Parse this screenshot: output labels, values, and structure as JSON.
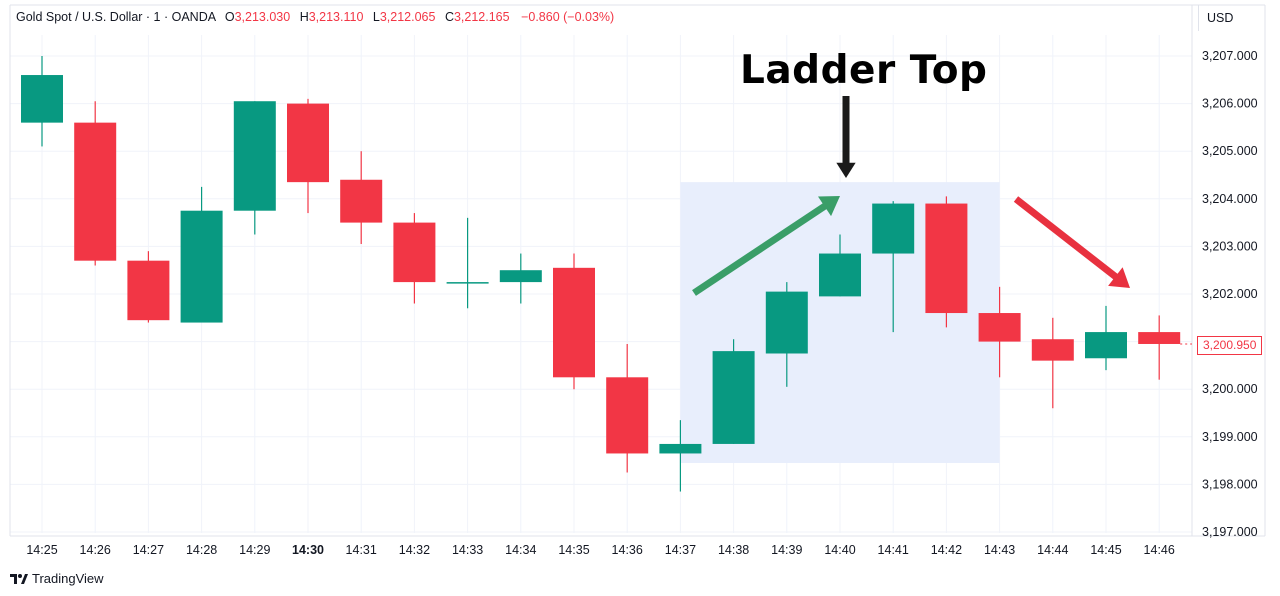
{
  "legend": {
    "symbol": "Gold Spot / U.S. Dollar · 1 · OANDA",
    "open_label": "O",
    "open": "3,213.030",
    "high_label": "H",
    "high": "3,213.110",
    "low_label": "L",
    "low": "3,212.065",
    "close_label": "C",
    "close": "3,212.165",
    "change": "−0.860 (−0.03%)"
  },
  "currency": "USD",
  "annotation": {
    "title": "Ladder Top"
  },
  "last_price_label": "3,200.950",
  "brand": "TradingView",
  "colors": {
    "up": "#089981",
    "down": "#f23645",
    "highlight": "#e8eefc",
    "green_arrow": "#3a9e68",
    "red_arrow": "#e8313f"
  },
  "chart_data": {
    "type": "candlestick",
    "xlabel": "",
    "ylabel": "",
    "ylim": [
      3197.0,
      3207.5
    ],
    "y_ticks": [
      "3,197.000",
      "3,198.000",
      "3,199.000",
      "3,200.000",
      "3,201.000",
      "3,202.000",
      "3,203.000",
      "3,204.000",
      "3,205.000",
      "3,206.000",
      "3,207.000"
    ],
    "y_tick_values": [
      3197,
      3198,
      3199,
      3200,
      3201,
      3202,
      3203,
      3204,
      3205,
      3206,
      3207
    ],
    "grid": true,
    "highlight_range": {
      "from": "14:37",
      "to": "14:43",
      "price_low": 3198.45,
      "price_high": 3204.35
    },
    "candles": [
      {
        "time": "14:25",
        "open": 3205.6,
        "high": 3207.0,
        "low": 3205.1,
        "close": 3206.6
      },
      {
        "time": "14:26",
        "open": 3205.6,
        "high": 3206.05,
        "low": 3202.6,
        "close": 3202.7
      },
      {
        "time": "14:27",
        "open": 3202.7,
        "high": 3202.9,
        "low": 3201.4,
        "close": 3201.45
      },
      {
        "time": "14:28",
        "open": 3201.4,
        "high": 3204.25,
        "low": 3201.4,
        "close": 3203.75
      },
      {
        "time": "14:29",
        "open": 3203.75,
        "high": 3206.05,
        "low": 3203.25,
        "close": 3206.05
      },
      {
        "time": "14:30",
        "open": 3206.0,
        "high": 3206.1,
        "low": 3203.7,
        "close": 3204.35
      },
      {
        "time": "14:31",
        "open": 3204.4,
        "high": 3205.0,
        "low": 3203.05,
        "close": 3203.5
      },
      {
        "time": "14:32",
        "open": 3203.5,
        "high": 3203.7,
        "low": 3201.8,
        "close": 3202.25
      },
      {
        "time": "14:33",
        "open": 3202.25,
        "high": 3203.6,
        "low": 3201.7,
        "close": 3202.25
      },
      {
        "time": "14:34",
        "open": 3202.25,
        "high": 3202.85,
        "low": 3201.8,
        "close": 3202.5
      },
      {
        "time": "14:35",
        "open": 3202.55,
        "high": 3202.85,
        "low": 3200.0,
        "close": 3200.25
      },
      {
        "time": "14:36",
        "open": 3200.25,
        "high": 3200.95,
        "low": 3198.25,
        "close": 3198.65
      },
      {
        "time": "14:37",
        "open": 3198.65,
        "high": 3199.35,
        "low": 3197.85,
        "close": 3198.85
      },
      {
        "time": "14:38",
        "open": 3198.85,
        "high": 3201.05,
        "low": 3198.85,
        "close": 3200.8
      },
      {
        "time": "14:39",
        "open": 3200.75,
        "high": 3202.25,
        "low": 3200.05,
        "close": 3202.05
      },
      {
        "time": "14:40",
        "open": 3201.95,
        "high": 3203.25,
        "low": 3201.95,
        "close": 3202.85
      },
      {
        "time": "14:41",
        "open": 3202.85,
        "high": 3203.95,
        "low": 3201.2,
        "close": 3203.9
      },
      {
        "time": "14:42",
        "open": 3203.9,
        "high": 3204.05,
        "low": 3201.3,
        "close": 3201.6
      },
      {
        "time": "14:43",
        "open": 3201.6,
        "high": 3202.15,
        "low": 3200.25,
        "close": 3201.0
      },
      {
        "time": "14:44",
        "open": 3201.05,
        "high": 3201.5,
        "low": 3199.6,
        "close": 3200.6
      },
      {
        "time": "14:45",
        "open": 3200.65,
        "high": 3201.75,
        "low": 3200.4,
        "close": 3201.2
      },
      {
        "time": "14:46",
        "open": 3201.2,
        "high": 3201.55,
        "low": 3200.2,
        "close": 3200.95
      }
    ],
    "bold_time": "14:30"
  }
}
